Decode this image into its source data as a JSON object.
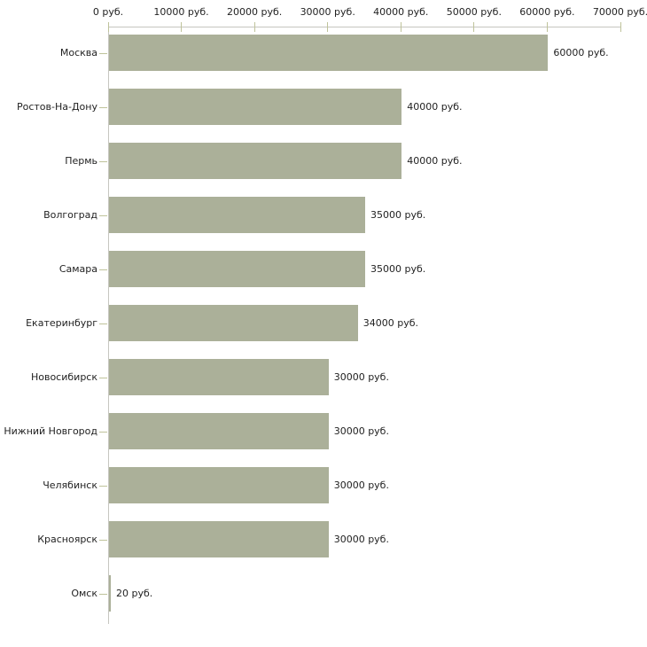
{
  "chart_data": {
    "type": "bar",
    "orientation": "horizontal",
    "title": "",
    "xlabel": "",
    "ylabel": "",
    "unit": "руб.",
    "categories": [
      "Москва",
      "Ростов-На-Дону",
      "Пермь",
      "Волгоград",
      "Самара",
      "Екатеринбург",
      "Новосибирск",
      "Нижний Новгород",
      "Челябинск",
      "Красноярск",
      "Омск"
    ],
    "values": [
      60000,
      40000,
      40000,
      35000,
      35000,
      34000,
      30000,
      30000,
      30000,
      30000,
      20
    ],
    "value_labels": [
      "60000 руб.",
      "40000 руб.",
      "40000 руб.",
      "35000 руб.",
      "35000 руб.",
      "34000 руб.",
      "30000 руб.",
      "30000 руб.",
      "30000 руб.",
      "30000 руб.",
      "20 руб."
    ],
    "x_axis": {
      "position": "top",
      "min": 0,
      "max": 70000,
      "ticks": [
        0,
        10000,
        20000,
        30000,
        40000,
        50000,
        60000,
        70000
      ],
      "tick_labels": [
        "0 руб.",
        "10000 руб.",
        "20000 руб.",
        "30000 руб.",
        "40000 руб.",
        "50000 руб.",
        "60000 руб.",
        "70000 руб."
      ]
    },
    "legend": "none",
    "grid": false
  },
  "colors": {
    "bar_fill": "#abb099",
    "axis_line": "#c6c6c0",
    "tick_mark": "#bfc39b",
    "text": "#222222",
    "background": "#ffffff"
  }
}
